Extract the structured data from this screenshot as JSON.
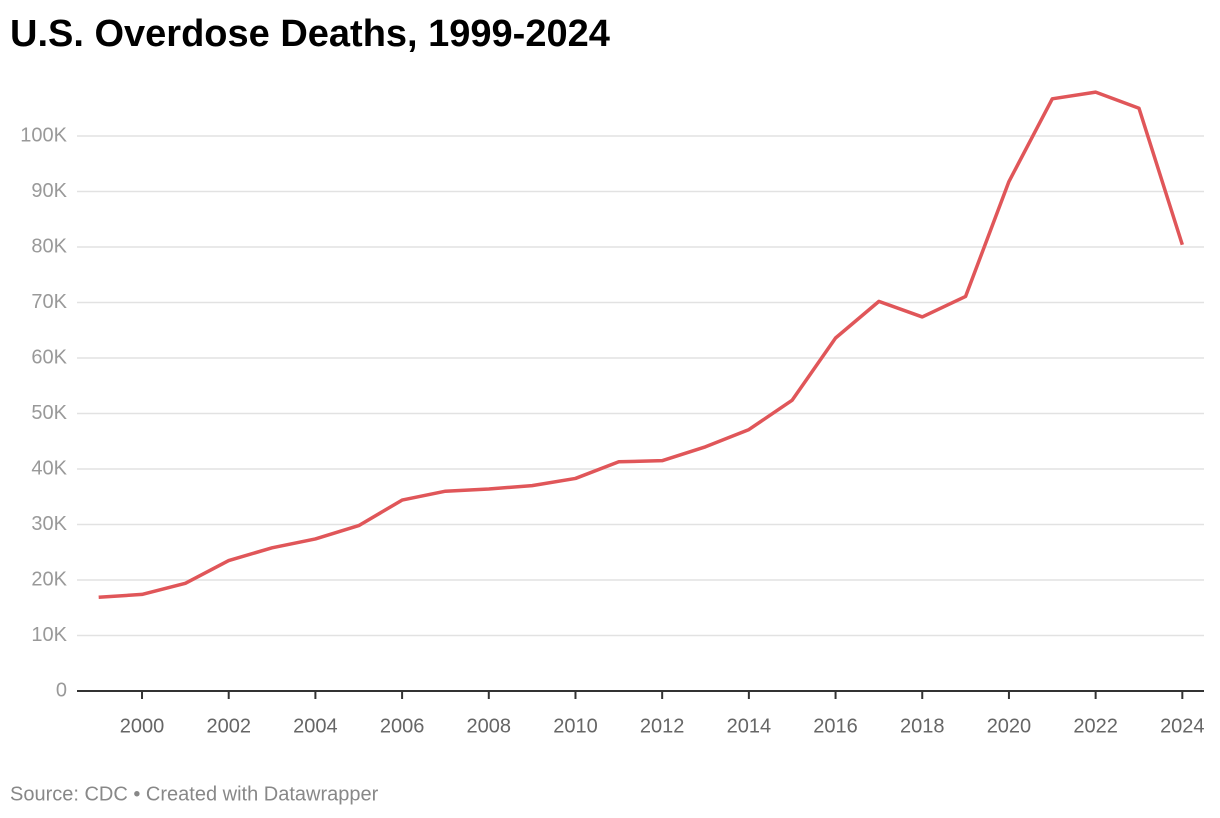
{
  "chart_data": {
    "type": "line",
    "title": "U.S. Overdose Deaths, 1999-2024",
    "source": "Source: CDC • Created with Datawrapper",
    "x": [
      1999,
      2000,
      2001,
      2002,
      2003,
      2004,
      2005,
      2006,
      2007,
      2008,
      2009,
      2010,
      2011,
      2012,
      2013,
      2014,
      2015,
      2016,
      2017,
      2018,
      2019,
      2020,
      2021,
      2022,
      2023,
      2024
    ],
    "series": [
      {
        "name": "Overdose deaths",
        "color": "#e05659",
        "values": [
          16900,
          17400,
          19400,
          23500,
          25800,
          27400,
          29800,
          34400,
          36000,
          36400,
          37000,
          38300,
          41300,
          41500,
          44000,
          47100,
          52400,
          63600,
          70200,
          67400,
          71100,
          91800,
          106700,
          107900,
          105000,
          80400
        ]
      }
    ],
    "xlim": [
      1998.5,
      2024.5
    ],
    "ylim": [
      0,
      110000
    ],
    "xticks": [
      2000,
      2002,
      2004,
      2006,
      2008,
      2010,
      2012,
      2014,
      2016,
      2018,
      2020,
      2022,
      2024
    ],
    "yticks": [
      0,
      {
        "value": 10000,
        "label": "10K"
      },
      {
        "value": 20000,
        "label": "20K"
      },
      {
        "value": 30000,
        "label": "30K"
      },
      {
        "value": 40000,
        "label": "40K"
      },
      {
        "value": 50000,
        "label": "50K"
      },
      {
        "value": 60000,
        "label": "60K"
      },
      {
        "value": 70000,
        "label": "70K"
      },
      {
        "value": 80000,
        "label": "80K"
      },
      {
        "value": 90000,
        "label": "90K"
      },
      {
        "value": 100000,
        "label": "100K"
      }
    ],
    "grid": true
  }
}
